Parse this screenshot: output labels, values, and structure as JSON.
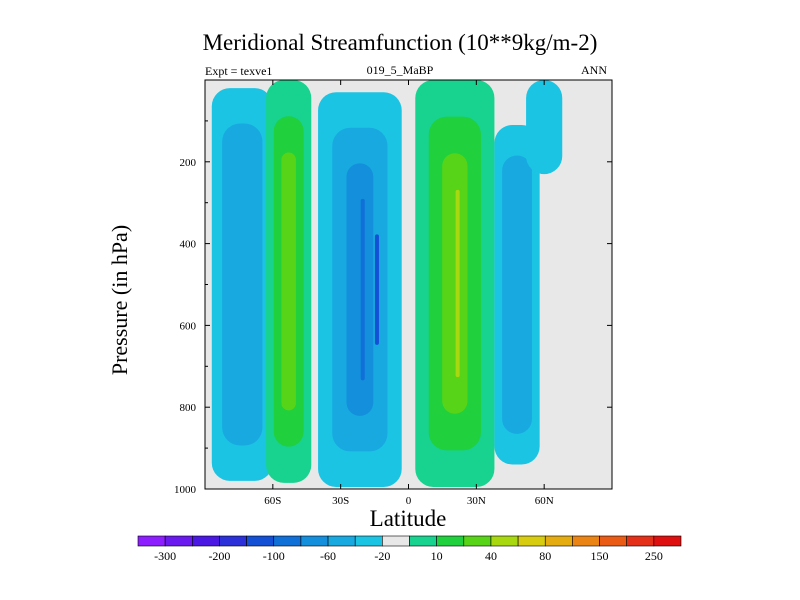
{
  "chart_data": {
    "type": "contour",
    "title": "Meridional Streamfunction (10**9kg/m-2)",
    "left_label": "Expt = texve1",
    "center_label": "019_5_MaBP",
    "right_label": "ANN",
    "xlabel": "Latitude",
    "ylabel": "Pressure (in hPa)",
    "xlim": [
      -90,
      90
    ],
    "ylim": [
      0,
      1000
    ],
    "y_inverted": true,
    "x_ticks": [
      {
        "value": -60,
        "label": "60S"
      },
      {
        "value": -30,
        "label": "30S"
      },
      {
        "value": 0,
        "label": "0"
      },
      {
        "value": 30,
        "label": "30N"
      },
      {
        "value": 60,
        "label": "60N"
      }
    ],
    "y_ticks": [
      {
        "value": 200,
        "label": "200"
      },
      {
        "value": 400,
        "label": "400"
      },
      {
        "value": 600,
        "label": "600"
      },
      {
        "value": 800,
        "label": "800"
      },
      {
        "value": 1000,
        "label": "1000"
      }
    ],
    "colorbar": {
      "colors": [
        "#8c1eff",
        "#6a1aef",
        "#4b18e3",
        "#2b30d8",
        "#1450d6",
        "#1070d8",
        "#148fdc",
        "#18a9e0",
        "#1cc4e3",
        "#e8e8e8",
        "#18d290",
        "#20d03c",
        "#58d418",
        "#a8d810",
        "#d8cc10",
        "#e4ac10",
        "#ea8414",
        "#ea5c16",
        "#e43018",
        "#de1010"
      ],
      "labels": [
        {
          "after_index": 0,
          "text": "-300"
        },
        {
          "after_index": 2,
          "text": "-200"
        },
        {
          "after_index": 4,
          "text": "-100"
        },
        {
          "after_index": 6,
          "text": "-60"
        },
        {
          "after_index": 8,
          "text": "-20"
        },
        {
          "after_index": 10,
          "text": "10"
        },
        {
          "after_index": 12,
          "text": "40"
        },
        {
          "after_index": 14,
          "text": "80"
        },
        {
          "after_index": 16,
          "text": "150"
        },
        {
          "after_index": 18,
          "text": "250"
        }
      ]
    },
    "cells": [
      {
        "name": "sh-polar-negative-cell",
        "lat": [
          -87,
          -60
        ],
        "p": [
          20,
          980
        ],
        "core": -20,
        "colors": [
          "#1cc4e3",
          "#18a9e0"
        ]
      },
      {
        "name": "sh-ferrel-positive-cell",
        "lat": [
          -63,
          -43
        ],
        "p": [
          0,
          985
        ],
        "core": 40,
        "colors": [
          "#18d290",
          "#20d03c",
          "#58d418"
        ]
      },
      {
        "name": "sh-hadley-negative-cell",
        "lat": [
          -40,
          -3
        ],
        "p": [
          30,
          995
        ],
        "core": -100,
        "colors": [
          "#1cc4e3",
          "#18a9e0",
          "#148fdc",
          "#1070d8",
          "#1450d6"
        ]
      },
      {
        "name": "nh-hadley-positive-cell",
        "lat": [
          3,
          38
        ],
        "p": [
          0,
          995
        ],
        "core": 80,
        "colors": [
          "#18d290",
          "#20d03c",
          "#58d418",
          "#a8d810"
        ]
      },
      {
        "name": "nh-ferrel-negative-cell",
        "lat": [
          38,
          58
        ],
        "p": [
          110,
          940
        ],
        "core": -20,
        "colors": [
          "#1cc4e3",
          "#18a9e0"
        ]
      },
      {
        "name": "nh-polar-negative-cell",
        "lat": [
          52,
          68
        ],
        "p": [
          0,
          230
        ],
        "core": -20,
        "colors": [
          "#1cc4e3"
        ]
      }
    ]
  }
}
